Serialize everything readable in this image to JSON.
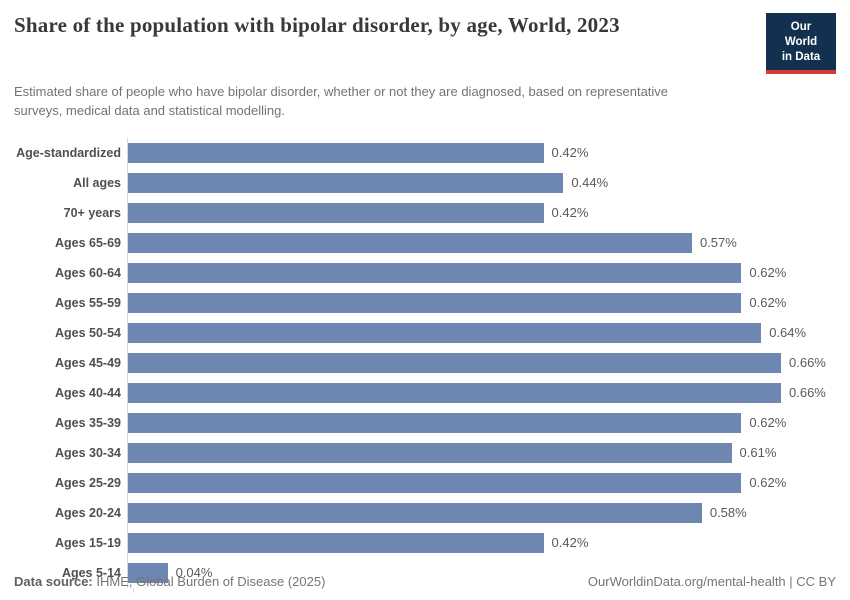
{
  "header": {
    "title": "Share of the population with bipolar disorder, by age, World, 2023",
    "subtitle": "Estimated share of people who have bipolar disorder, whether or not they are diagnosed, based on representative surveys, medical data and statistical modelling.",
    "logo": {
      "line1": "Our World",
      "line2": "in Data"
    }
  },
  "chart_data": {
    "type": "bar",
    "orientation": "horizontal",
    "title": "Share of the population with bipolar disorder, by age, World, 2023",
    "categories": [
      "Age-standardized",
      "All ages",
      "70+ years",
      "Ages 65-69",
      "Ages 60-64",
      "Ages 55-59",
      "Ages 50-54",
      "Ages 45-49",
      "Ages 40-44",
      "Ages 35-39",
      "Ages 30-34",
      "Ages 25-29",
      "Ages 20-24",
      "Ages 15-19",
      "Ages 5-14"
    ],
    "values": [
      0.42,
      0.44,
      0.42,
      0.57,
      0.62,
      0.62,
      0.64,
      0.66,
      0.66,
      0.62,
      0.61,
      0.62,
      0.58,
      0.42,
      0.04
    ],
    "value_labels": [
      "0.42%",
      "0.44%",
      "0.42%",
      "0.57%",
      "0.62%",
      "0.62%",
      "0.64%",
      "0.66%",
      "0.66%",
      "0.62%",
      "0.61%",
      "0.62%",
      "0.58%",
      "0.42%",
      "0.04%"
    ],
    "unit": "%",
    "xlim": [
      0,
      0.66
    ],
    "grid": false,
    "legend": "none",
    "bar_color": "#6e87b1",
    "axis_line_color": "#d9d9d9"
  },
  "footer": {
    "source_label": "Data source:",
    "source_text": " IHME, Global Burden of Disease (2025)",
    "credit": "OurWorldinData.org/mental-health | CC BY"
  }
}
